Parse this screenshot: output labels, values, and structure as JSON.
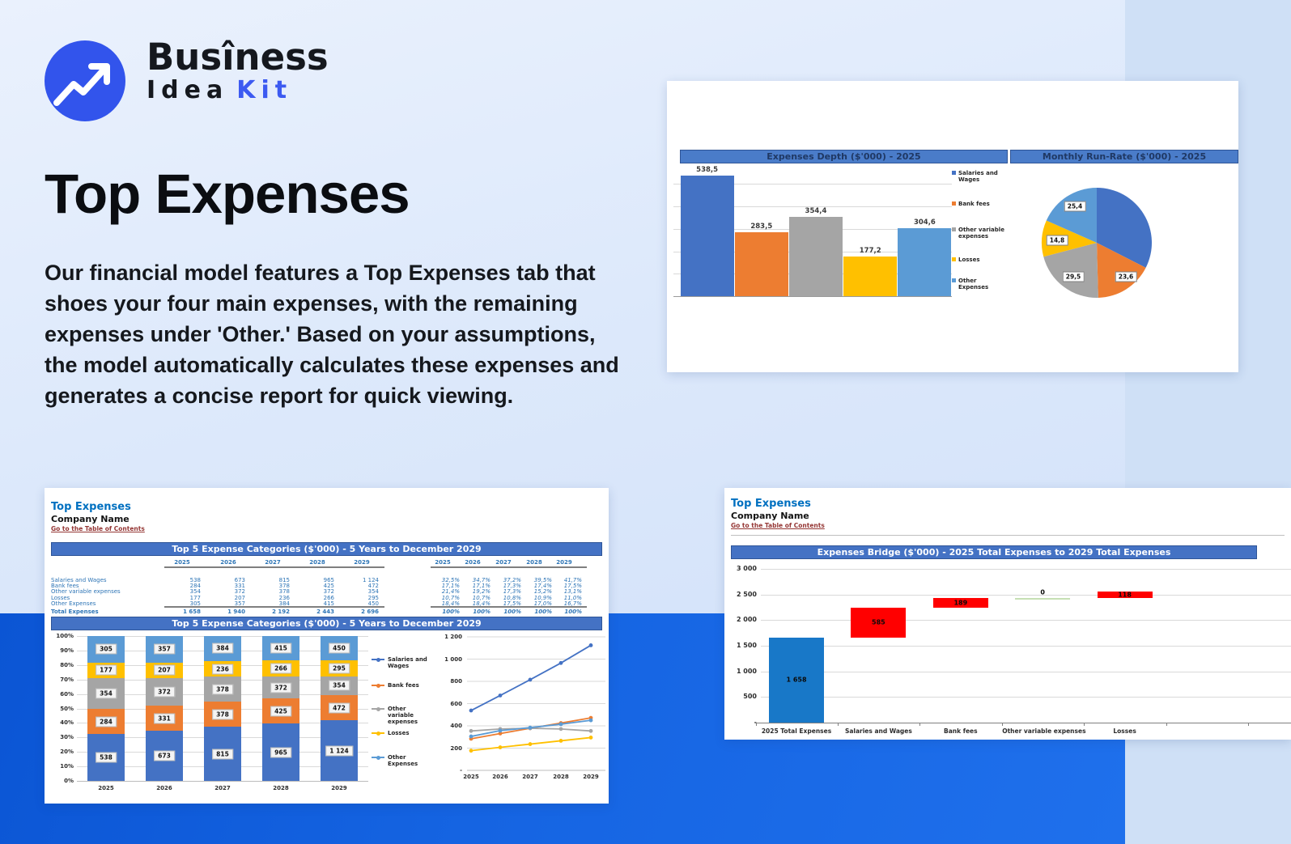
{
  "brand": {
    "line1": "Busîness",
    "line2_word1": "Idea",
    "line2_word2": "Kit"
  },
  "hero": {
    "title": "Top Expenses",
    "paragraph": "Our financial model features a Top Expenses tab that shoes your four main expenses, with the remaining expenses under 'Other.' Based on your assumptions, the model automatically calculates these expenses and generates a concise report for quick viewing."
  },
  "colors": {
    "brand_blue": "#3254ec",
    "accent_blue": "#0070c0",
    "link_maroon": "#953735",
    "header_bar_blue": "#4472c4",
    "band_blue": "#1564e2",
    "series_blue": "#4472c4",
    "series_orange": "#ed7d31",
    "series_gray": "#a5a5a5",
    "series_yellow": "#ffc000",
    "series_lightblue": "#5b9bd5",
    "waterfall_red": "#ff0000",
    "waterfall_blue": "#1878c8",
    "waterfall_green": "#c6e0b4"
  },
  "sheet": {
    "title": "Top Expenses",
    "company": "Company Name",
    "link": "Go to the Table of Contents"
  },
  "table": {
    "header": "Top 5 Expense Categories ($'000) - 5 Years to December 2029",
    "years": [
      "2025",
      "2026",
      "2027",
      "2028",
      "2029"
    ],
    "rows": [
      {
        "label": "Salaries and Wages",
        "values": [
          "538",
          "673",
          "815",
          "965",
          "1 124"
        ],
        "pcts": [
          "32,5%",
          "34,7%",
          "37,2%",
          "39,5%",
          "41,7%"
        ]
      },
      {
        "label": "Bank fees",
        "values": [
          "284",
          "331",
          "378",
          "425",
          "472"
        ],
        "pcts": [
          "17,1%",
          "17,1%",
          "17,3%",
          "17,4%",
          "17,5%"
        ]
      },
      {
        "label": "Other variable expenses",
        "values": [
          "354",
          "372",
          "378",
          "372",
          "354"
        ],
        "pcts": [
          "21,4%",
          "19,2%",
          "17,3%",
          "15,2%",
          "13,1%"
        ]
      },
      {
        "label": "Losses",
        "values": [
          "177",
          "207",
          "236",
          "266",
          "295"
        ],
        "pcts": [
          "10,7%",
          "10,7%",
          "10,8%",
          "10,9%",
          "11,0%"
        ]
      },
      {
        "label": "Other Expenses",
        "values": [
          "305",
          "357",
          "384",
          "415",
          "450"
        ],
        "pcts": [
          "18,4%",
          "18,4%",
          "17,5%",
          "17,0%",
          "16,7%"
        ]
      }
    ],
    "total": {
      "label": "Total Expenses",
      "values": [
        "1 658",
        "1 940",
        "2 192",
        "2 443",
        "2 696"
      ],
      "pcts": [
        "100%",
        "100%",
        "100%",
        "100%",
        "100%"
      ]
    }
  },
  "chart_data": [
    {
      "id": "expenses-depth-bar",
      "type": "bar",
      "title": "Expenses Depth ($'000) - 2025",
      "categories": [
        "Salaries and Wages",
        "Bank fees",
        "Other variable expenses",
        "Losses",
        "Other Expenses"
      ],
      "values": [
        538.5,
        283.5,
        354.4,
        177.2,
        304.6
      ],
      "labels": [
        "538,5",
        "283,5",
        "354,4",
        "177,2",
        "304,6"
      ],
      "colors": [
        "#4472c4",
        "#ed7d31",
        "#a5a5a5",
        "#ffc000",
        "#5b9bd5"
      ],
      "ylim": [
        0,
        500
      ],
      "gridstep": 100,
      "legend_position": "right",
      "grid": true
    },
    {
      "id": "monthly-run-rate-pie",
      "type": "pie",
      "title": "Monthly Run-Rate ($'000) - 2025",
      "categories": [
        "Salaries and Wages",
        "Bank fees",
        "Other variable expenses",
        "Losses",
        "Other Expenses"
      ],
      "values": [
        44.9,
        23.6,
        29.5,
        14.8,
        25.4
      ],
      "labels": [
        "",
        "23,6",
        "29,5",
        "14,8",
        "25,4"
      ],
      "colors": [
        "#4472c4",
        "#ed7d31",
        "#a5a5a5",
        "#ffc000",
        "#5b9bd5"
      ]
    },
    {
      "id": "top5-stacked",
      "type": "bar",
      "subtype": "stacked100",
      "title": "Top 5 Expense Categories ($'000) - 5 Years to December 2029",
      "categories": [
        "2025",
        "2026",
        "2027",
        "2028",
        "2029"
      ],
      "yticks": [
        "0%",
        "10%",
        "20%",
        "30%",
        "40%",
        "50%",
        "60%",
        "70%",
        "80%",
        "90%",
        "100%"
      ],
      "series": [
        {
          "name": "Salaries and Wages",
          "color": "#4472c4",
          "values": [
            538,
            673,
            815,
            965,
            1124
          ],
          "labels": [
            "538",
            "673",
            "815",
            "965",
            "1 124"
          ],
          "pct": [
            32.5,
            34.7,
            37.2,
            39.5,
            41.7
          ]
        },
        {
          "name": "Bank fees",
          "color": "#ed7d31",
          "values": [
            284,
            331,
            378,
            425,
            472
          ],
          "labels": [
            "284",
            "331",
            "378",
            "425",
            "472"
          ],
          "pct": [
            17.1,
            17.1,
            17.3,
            17.4,
            17.5
          ]
        },
        {
          "name": "Other variable expenses",
          "color": "#a5a5a5",
          "values": [
            354,
            372,
            378,
            372,
            354
          ],
          "labels": [
            "354",
            "372",
            "378",
            "372",
            "354"
          ],
          "pct": [
            21.4,
            19.2,
            17.3,
            15.2,
            13.1
          ]
        },
        {
          "name": "Losses",
          "color": "#ffc000",
          "values": [
            177,
            207,
            236,
            266,
            295
          ],
          "labels": [
            "177",
            "207",
            "236",
            "266",
            "295"
          ],
          "pct": [
            10.7,
            10.7,
            10.8,
            10.9,
            11.0
          ]
        },
        {
          "name": "Other Expenses",
          "color": "#5b9bd5",
          "values": [
            305,
            357,
            384,
            415,
            450
          ],
          "labels": [
            "305",
            "357",
            "384",
            "415",
            "450"
          ],
          "pct": [
            18.4,
            18.4,
            17.5,
            17.0,
            16.7
          ]
        }
      ],
      "grid": true,
      "legend_position": "right"
    },
    {
      "id": "top5-lines",
      "type": "line",
      "categories": [
        "2025",
        "2026",
        "2027",
        "2028",
        "2029"
      ],
      "ylim": [
        0,
        1200
      ],
      "yticks": [
        "-",
        "200",
        "400",
        "600",
        "800",
        "1 000",
        "1 200"
      ],
      "series": [
        {
          "name": "Salaries and Wages",
          "color": "#4472c4",
          "values": [
            538,
            673,
            815,
            965,
            1124
          ]
        },
        {
          "name": "Bank fees",
          "color": "#ed7d31",
          "values": [
            284,
            331,
            378,
            425,
            472
          ]
        },
        {
          "name": "Other variable expenses",
          "color": "#a5a5a5",
          "values": [
            354,
            372,
            378,
            372,
            354
          ]
        },
        {
          "name": "Losses",
          "color": "#ffc000",
          "values": [
            177,
            207,
            236,
            266,
            295
          ]
        },
        {
          "name": "Other Expenses",
          "color": "#5b9bd5",
          "values": [
            305,
            357,
            384,
            415,
            450
          ]
        }
      ],
      "grid": true,
      "legend_position": "left"
    },
    {
      "id": "expenses-bridge-waterfall",
      "type": "waterfall",
      "title": "Expenses Bridge ($'000) - 2025 Total Expenses to 2029 Total Expenses",
      "ylim": [
        0,
        3000
      ],
      "yticks": [
        "-",
        "500",
        "1 000",
        "1 500",
        "2 000",
        "2 500",
        "3 000"
      ],
      "steps": [
        {
          "label": "2025 Total Expenses",
          "value": 1658,
          "display": "1 658",
          "kind": "base",
          "color": "#1878c8"
        },
        {
          "label": "Salaries and Wages",
          "value": 585,
          "display": "585",
          "kind": "delta",
          "color": "#ff0000"
        },
        {
          "label": "Bank fees",
          "value": 189,
          "display": "189",
          "kind": "delta",
          "color": "#ff0000"
        },
        {
          "label": "Other variable expenses",
          "value": 0,
          "display": "0",
          "kind": "flat",
          "color": "#c6e0b4"
        },
        {
          "label": "Losses",
          "value": 118,
          "display": "118",
          "kind": "delta",
          "color": "#ff0000"
        }
      ],
      "grid": true
    }
  ]
}
